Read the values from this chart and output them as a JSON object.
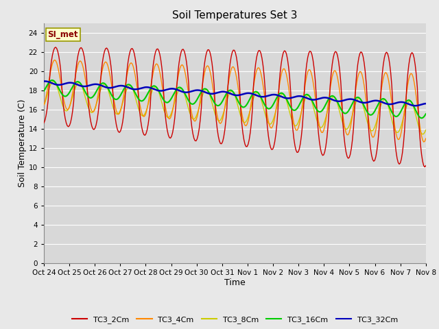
{
  "title": "Soil Temperatures Set 3",
  "xlabel": "Time",
  "ylabel": "Soil Temperature (C)",
  "ylim": [
    0,
    25
  ],
  "yticks": [
    0,
    2,
    4,
    6,
    8,
    10,
    12,
    14,
    16,
    18,
    20,
    22,
    24
  ],
  "x_labels": [
    "Oct 24",
    "Oct 25",
    "Oct 26",
    "Oct 27",
    "Oct 28",
    "Oct 29",
    "Oct 30",
    "Oct 31",
    "Nov 1",
    "Nov 2",
    "Nov 3",
    "Nov 4",
    "Nov 5",
    "Nov 6",
    "Nov 7",
    "Nov 8"
  ],
  "colors": {
    "TC3_2Cm": "#cc0000",
    "TC3_4Cm": "#ff8800",
    "TC3_8Cm": "#cccc00",
    "TC3_16Cm": "#00cc00",
    "TC3_32Cm": "#0000bb"
  },
  "legend_label": "SI_met",
  "background_color": "#e8e8e8",
  "plot_bg_color": "#d8d8d8",
  "grid_color": "#ffffff"
}
